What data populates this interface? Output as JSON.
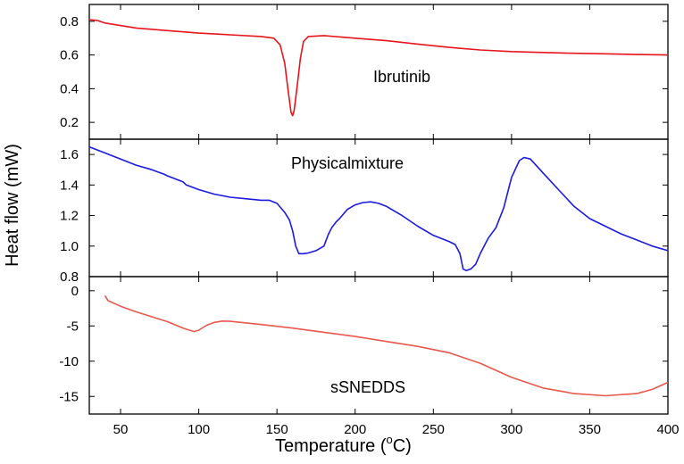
{
  "chart_data": {
    "type": "line",
    "x_axis": {
      "label": "Temperature (°C)",
      "label_main": "Temperature (",
      "label_sup": "o",
      "label_unit": "C)",
      "range": [
        30,
        400
      ],
      "ticks": [
        50,
        100,
        150,
        200,
        250,
        300,
        350,
        400
      ]
    },
    "y_axis_label": "Heat flow (mW)",
    "panels": [
      {
        "id": "ibrutinib",
        "label": "Ibrutinib",
        "color": "#e8141c",
        "ylim": [
          0.1,
          0.9
        ],
        "yticks": [
          {
            "v": 0.2,
            "t": "0.2"
          },
          {
            "v": 0.4,
            "t": "0.4"
          },
          {
            "v": 0.6,
            "t": "0.6"
          },
          {
            "v": 0.8,
            "t": "0.8"
          }
        ],
        "points": [
          [
            30,
            0.81
          ],
          [
            35,
            0.805
          ],
          [
            40,
            0.79
          ],
          [
            60,
            0.76
          ],
          [
            80,
            0.745
          ],
          [
            100,
            0.73
          ],
          [
            120,
            0.72
          ],
          [
            140,
            0.71
          ],
          [
            148,
            0.7
          ],
          [
            152,
            0.66
          ],
          [
            155,
            0.55
          ],
          [
            157,
            0.4
          ],
          [
            159,
            0.26
          ],
          [
            160,
            0.24
          ],
          [
            161,
            0.27
          ],
          [
            163,
            0.42
          ],
          [
            165,
            0.58
          ],
          [
            167,
            0.68
          ],
          [
            170,
            0.71
          ],
          [
            180,
            0.715
          ],
          [
            200,
            0.7
          ],
          [
            220,
            0.685
          ],
          [
            240,
            0.665
          ],
          [
            260,
            0.645
          ],
          [
            280,
            0.63
          ],
          [
            300,
            0.62
          ],
          [
            320,
            0.615
          ],
          [
            340,
            0.61
          ],
          [
            360,
            0.607
          ],
          [
            380,
            0.603
          ],
          [
            400,
            0.6
          ]
        ]
      },
      {
        "id": "physical-mixture",
        "label": "Physicalmixture",
        "color": "#1a1ae0",
        "ylim": [
          0.8,
          1.7
        ],
        "yticks": [
          {
            "v": 0.8,
            "t": "0.8"
          },
          {
            "v": 1.0,
            "t": "1.0"
          },
          {
            "v": 1.2,
            "t": "1.2"
          },
          {
            "v": 1.4,
            "t": "1.4"
          },
          {
            "v": 1.6,
            "t": "1.6"
          }
        ],
        "points": [
          [
            30,
            1.65
          ],
          [
            40,
            1.61
          ],
          [
            50,
            1.57
          ],
          [
            60,
            1.53
          ],
          [
            70,
            1.5
          ],
          [
            78,
            1.47
          ],
          [
            80,
            1.46
          ],
          [
            90,
            1.42
          ],
          [
            92,
            1.4
          ],
          [
            100,
            1.37
          ],
          [
            110,
            1.34
          ],
          [
            120,
            1.32
          ],
          [
            130,
            1.31
          ],
          [
            140,
            1.3
          ],
          [
            145,
            1.3
          ],
          [
            150,
            1.28
          ],
          [
            155,
            1.22
          ],
          [
            158,
            1.17
          ],
          [
            160,
            1.1
          ],
          [
            162,
            1.0
          ],
          [
            164,
            0.95
          ],
          [
            167,
            0.95
          ],
          [
            170,
            0.955
          ],
          [
            175,
            0.97
          ],
          [
            180,
            1.0
          ],
          [
            183,
            1.08
          ],
          [
            185,
            1.12
          ],
          [
            188,
            1.16
          ],
          [
            190,
            1.18
          ],
          [
            195,
            1.24
          ],
          [
            200,
            1.27
          ],
          [
            205,
            1.285
          ],
          [
            210,
            1.29
          ],
          [
            215,
            1.28
          ],
          [
            220,
            1.26
          ],
          [
            230,
            1.2
          ],
          [
            240,
            1.13
          ],
          [
            250,
            1.07
          ],
          [
            260,
            1.03
          ],
          [
            264,
            1.01
          ],
          [
            267,
            0.95
          ],
          [
            269,
            0.85
          ],
          [
            271,
            0.84
          ],
          [
            274,
            0.85
          ],
          [
            277,
            0.88
          ],
          [
            280,
            0.95
          ],
          [
            285,
            1.05
          ],
          [
            290,
            1.12
          ],
          [
            295,
            1.25
          ],
          [
            300,
            1.45
          ],
          [
            305,
            1.56
          ],
          [
            308,
            1.58
          ],
          [
            312,
            1.57
          ],
          [
            320,
            1.48
          ],
          [
            330,
            1.37
          ],
          [
            340,
            1.26
          ],
          [
            350,
            1.18
          ],
          [
            360,
            1.13
          ],
          [
            370,
            1.08
          ],
          [
            380,
            1.04
          ],
          [
            390,
            1.0
          ],
          [
            400,
            0.97
          ]
        ]
      },
      {
        "id": "ssnedds",
        "label": "sSNEDDS",
        "color": "#e8584c",
        "ylim": [
          -17.5,
          2
        ],
        "yticks": [
          {
            "v": 0,
            "t": "0"
          },
          {
            "v": -5,
            "t": "-5"
          },
          {
            "v": -10,
            "t": "-10"
          },
          {
            "v": -15,
            "t": "-15"
          }
        ],
        "points": [
          [
            40,
            -0.7
          ],
          [
            42,
            -1.4
          ],
          [
            50,
            -2.2
          ],
          [
            60,
            -3.0
          ],
          [
            70,
            -3.7
          ],
          [
            80,
            -4.4
          ],
          [
            90,
            -5.3
          ],
          [
            97,
            -5.8
          ],
          [
            100,
            -5.6
          ],
          [
            105,
            -4.9
          ],
          [
            110,
            -4.5
          ],
          [
            115,
            -4.3
          ],
          [
            120,
            -4.35
          ],
          [
            140,
            -4.8
          ],
          [
            160,
            -5.3
          ],
          [
            180,
            -5.9
          ],
          [
            200,
            -6.5
          ],
          [
            220,
            -7.2
          ],
          [
            240,
            -7.9
          ],
          [
            260,
            -8.8
          ],
          [
            280,
            -10.3
          ],
          [
            300,
            -12.3
          ],
          [
            320,
            -13.8
          ],
          [
            340,
            -14.6
          ],
          [
            360,
            -14.9
          ],
          [
            380,
            -14.6
          ],
          [
            390,
            -14.0
          ],
          [
            400,
            -13.0
          ]
        ]
      }
    ]
  }
}
